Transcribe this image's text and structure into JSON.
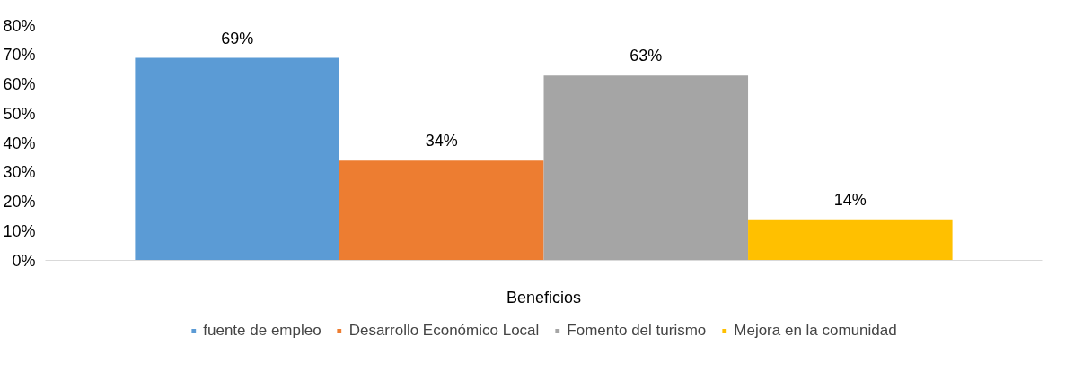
{
  "chart_data": {
    "type": "bar",
    "categories": [
      "Beneficios"
    ],
    "series": [
      {
        "name": "fuente de empleo",
        "color": "#5b9bd5",
        "values": [
          69
        ],
        "value_labels": [
          "69%"
        ]
      },
      {
        "name": "Desarrollo Económico Local",
        "color": "#ed7d31",
        "values": [
          34
        ],
        "value_labels": [
          "34%"
        ]
      },
      {
        "name": "Fomento del turismo",
        "color": "#a5a5a5",
        "values": [
          63
        ],
        "value_labels": [
          "63%"
        ]
      },
      {
        "name": "Mejora en la comunidad",
        "color": "#ffc000",
        "values": [
          14
        ],
        "value_labels": [
          "14%"
        ]
      }
    ],
    "ylim": [
      0,
      80
    ],
    "yticks": [
      {
        "value": 0,
        "label": "0%"
      },
      {
        "value": 10,
        "label": "10%"
      },
      {
        "value": 20,
        "label": "20%"
      },
      {
        "value": 30,
        "label": "30%"
      },
      {
        "value": 40,
        "label": "40%"
      },
      {
        "value": 50,
        "label": "50%"
      },
      {
        "value": 60,
        "label": "60%"
      },
      {
        "value": 70,
        "label": "70%"
      },
      {
        "value": 80,
        "label": "80%"
      }
    ],
    "grid": false,
    "legend": "bottom"
  }
}
